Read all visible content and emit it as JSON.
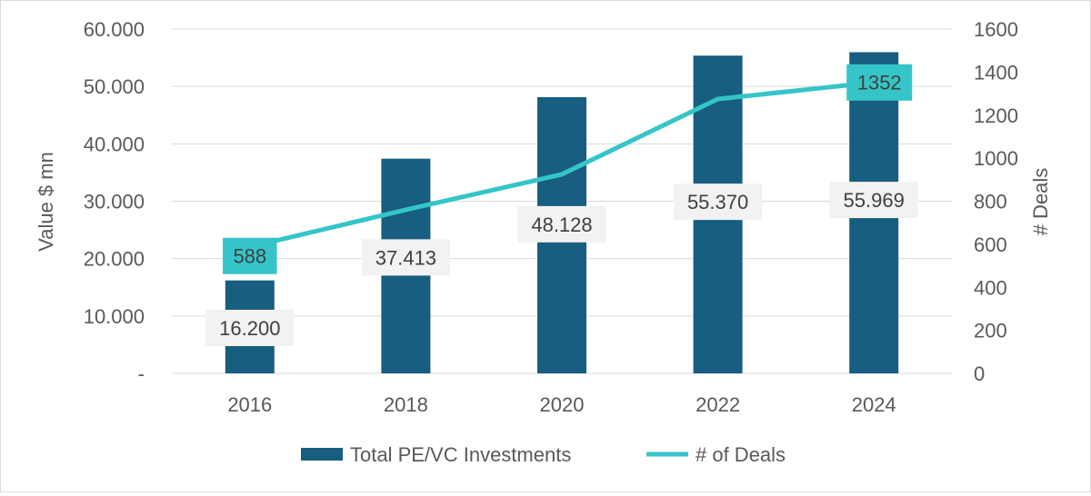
{
  "chart_data": {
    "type": "bar",
    "categories": [
      "2016",
      "2018",
      "2020",
      "2022",
      "2024"
    ],
    "y_left": {
      "label": "Value $ mn",
      "ylim": [
        0,
        60000
      ],
      "ticks": [
        0,
        10000,
        20000,
        30000,
        40000,
        50000,
        60000
      ],
      "tick_labels": [
        "-",
        "10.000",
        "20.000",
        "30.000",
        "40.000",
        "50.000",
        "60.000"
      ]
    },
    "y_right": {
      "label": "# Deals",
      "ylim": [
        0,
        1600
      ],
      "ticks": [
        0,
        200,
        400,
        600,
        800,
        1000,
        1200,
        1400,
        1600
      ],
      "tick_labels": [
        "0",
        "200",
        "400",
        "600",
        "800",
        "1000",
        "1200",
        "1400",
        "1600"
      ]
    },
    "series": [
      {
        "name": "Total PE/VC Investments",
        "type": "bar",
        "axis": "left",
        "values": [
          16200,
          37413,
          48128,
          55370,
          55969
        ],
        "data_labels": [
          "16.200",
          "37.413",
          "48.128",
          "55.370",
          "55.969"
        ]
      },
      {
        "name": "# of Deals",
        "type": "line",
        "axis": "right",
        "values": [
          588,
          760,
          925,
          1275,
          1352
        ],
        "data_labels": [
          "588",
          "",
          "",
          "",
          "1352"
        ]
      }
    ],
    "grid": "horizontal",
    "legend_position": "bottom",
    "colors": {
      "bar": "#175e80",
      "line": "#35c5c8",
      "grid": "#d9d9d9",
      "text": "#595959",
      "label_bg": "#f2f2f2"
    }
  }
}
